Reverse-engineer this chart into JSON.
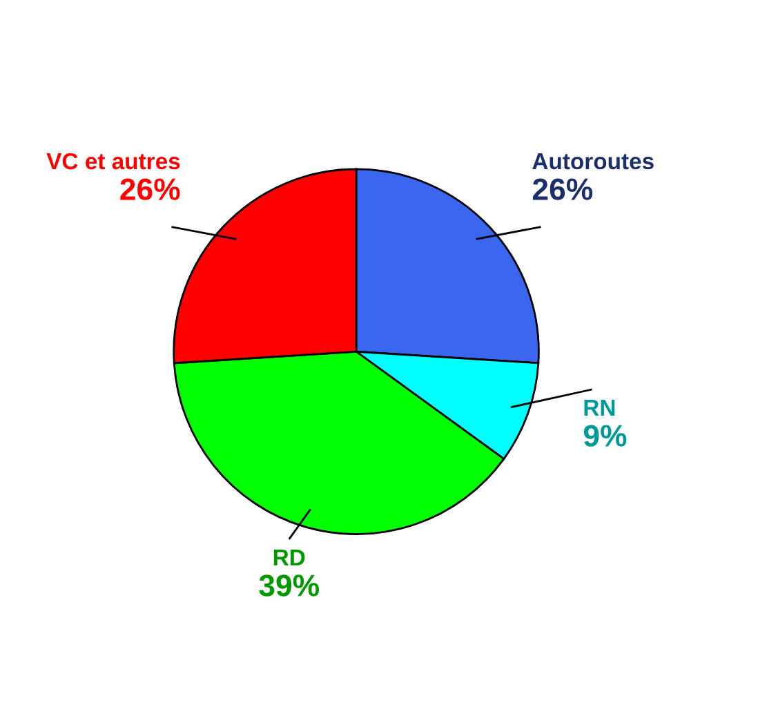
{
  "chart_data": {
    "type": "pie",
    "categories": [
      "Autoroutes",
      "RN",
      "RD",
      "VC et autres"
    ],
    "values": [
      26,
      9,
      39,
      26
    ],
    "value_labels": [
      "26%",
      "9%",
      "39%",
      "26%"
    ],
    "colors": [
      "#3a66f0",
      "#00ffff",
      "#00ff00",
      "#ff0000"
    ]
  }
}
